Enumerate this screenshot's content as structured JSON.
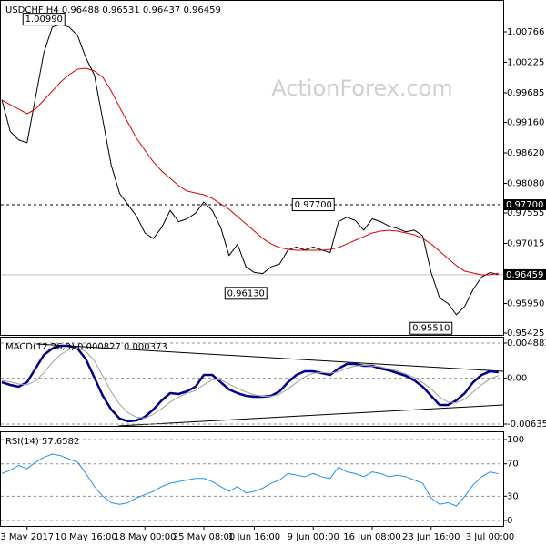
{
  "chart_data": [
    {
      "type": "line",
      "title": "USDCHF,H4 0.96488 0.96531 0.96437 0.96459",
      "watermark": "ActionForex.com",
      "ylim": [
        0.95393,
        1.01331
      ],
      "yticks": [
        1.00766,
        1.00225,
        0.99685,
        {
          "value": 0.9916,
          "label": "0.99160"
        },
        {
          "value": 0.9862,
          "label": "0.98620"
        },
        {
          "value": 0.9808,
          "label": "0.98080"
        },
        0.97555,
        0.97015,
        {
          "value": 0.9595,
          "label": "0.95950"
        },
        0.95425
      ],
      "series": [
        {
          "color": "#000000",
          "values": [
            0.9956,
            0.99,
            0.9885,
            0.988,
            0.996,
            1.004,
            1.0085,
            1.009,
            1.0085,
            1.007,
            1.003,
            1.0,
            0.992,
            0.984,
            0.979,
            0.977,
            0.975,
            0.972,
            0.971,
            0.973,
            0.976,
            0.974,
            0.9745,
            0.9755,
            0.9775,
            0.976,
            0.973,
            0.968,
            0.97,
            0.966,
            0.965,
            0.9648,
            0.966,
            0.9665,
            0.969,
            0.9695,
            0.969,
            0.9695,
            0.969,
            0.9685,
            0.974,
            0.9748,
            0.9742,
            0.9725,
            0.9745,
            0.974,
            0.9732,
            0.9728,
            0.9722,
            0.9725,
            0.9715,
            0.965,
            0.9605,
            0.9595,
            0.9575,
            0.959,
            0.962,
            0.9642,
            0.965,
            0.9646
          ]
        },
        {
          "color": "#e00000",
          "values": [
            0.99556,
            0.99475,
            0.99395,
            0.99314,
            0.99395,
            0.99556,
            0.99717,
            0.99879,
            1.00008,
            1.00105,
            1.00121,
            1.00072,
            0.99959,
            0.99717,
            0.99427,
            0.99153,
            0.98878,
            0.98668,
            0.98459,
            0.98297,
            0.98168,
            0.98039,
            0.97942,
            0.9791,
            0.97878,
            0.97813,
            0.97716,
            0.9762,
            0.9749,
            0.97361,
            0.97232,
            0.97103,
            0.97006,
            0.96942,
            0.9691,
            0.96893,
            0.96893,
            0.96893,
            0.96893,
            0.9691,
            0.96942,
            0.97006,
            0.97071,
            0.97135,
            0.972,
            0.97232,
            0.97248,
            0.97232,
            0.972,
            0.97168,
            0.97103,
            0.97006,
            0.96877,
            0.96748,
            0.96619,
            0.96522,
            0.9649,
            0.96458,
            0.96458,
            0.9649
          ]
        }
      ],
      "annotations": [
        {
          "value": 1.0099,
          "label": "1.00990",
          "at": 5
        },
        {
          "value": 0.977,
          "label": "0.97700",
          "at": 37,
          "line": "dashed"
        },
        {
          "value": 0.9613,
          "label": "0.96130",
          "at": 29
        },
        {
          "value": 0.9551,
          "label": "0.95510",
          "at": 51
        }
      ],
      "last_price": 0.96459
    },
    {
      "type": "line",
      "title": "MACD(12,26,9) 0.000827 0.000373",
      "ylim": [
        -0.006607,
        0.005767
      ],
      "yticks": [
        0.004883,
        {
          "value": 0,
          "label": "0.00"
        },
        -0.006354
      ],
      "grid": true,
      "series": [
        {
          "color": "#00008b",
          "width": 2.5,
          "values": [
            -0.000546,
            -0.000925,
            -0.001177,
            -0.000546,
            0.001348,
            0.003242,
            0.004126,
            0.004504,
            0.004504,
            0.004126,
            0.00261,
            8.5e-05,
            -0.00244,
            -0.004334,
            -0.005597,
            -0.005975,
            -0.005849,
            -0.005344,
            -0.004334,
            -0.003071,
            -0.002061,
            -0.002188,
            -0.001809,
            -0.001177,
            0.000464,
            0.000464,
            -0.000546,
            -0.001556,
            -0.002061,
            -0.00244,
            -0.002566,
            -0.002566,
            -0.00244,
            -0.001809,
            -0.000546,
            0.000464,
            0.000969,
            0.000969,
            0.000716,
            0.000464,
            0.001348,
            0.001979,
            0.001979,
            0.001727,
            0.001727,
            0.001348,
            0.001095,
            0.000716,
            0.000338,
            -0.000294,
            -0.001177,
            -0.00244,
            -0.003703,
            -0.003703,
            -0.003071,
            -0.002061,
            -0.000546,
            0.000464,
            0.000969,
            0.000827
          ]
        },
        {
          "color": "#a0a0a0",
          "width": 1,
          "values": [
            -0.0003,
            -0.0005,
            -0.0008,
            -0.0009,
            -0.0004,
            0.0008,
            0.0022,
            0.0033,
            0.004,
            0.0042,
            0.0037,
            0.0024,
            0.0003,
            -0.0019,
            -0.0036,
            -0.0048,
            -0.0054,
            -0.0055,
            -0.005,
            -0.0042,
            -0.0033,
            -0.0026,
            -0.0021,
            -0.0017,
            -0.0009,
            -0.0002,
            -0.0002,
            -0.0008,
            -0.0014,
            -0.0019,
            -0.0023,
            -0.0025,
            -0.0025,
            -0.0022,
            -0.0015,
            -0.0006,
            0.0002,
            0.0007,
            0.0008,
            0.0007,
            0.0009,
            0.0014,
            0.0017,
            0.0018,
            0.0017,
            0.0016,
            0.0013,
            0.001,
            0.0006,
            0.0001,
            -0.0006,
            -0.0015,
            -0.0026,
            -0.0033,
            -0.0034,
            -0.0029,
            -0.0019,
            -0.0009,
            -0.0001,
            0.000373
          ]
        }
      ]
    },
    {
      "type": "line",
      "title": "RSI(14) 57.6582",
      "ylim": [
        -6.7,
        110.1
      ],
      "yticks": [
        100,
        70,
        30,
        0
      ],
      "grid": true,
      "categories": [
        null,
        null,
        null,
        "3 May 2017",
        null,
        null,
        null,
        null,
        null,
        null,
        "10 May 16:00",
        null,
        null,
        null,
        null,
        null,
        null,
        "18 May 00:00",
        null,
        null,
        null,
        null,
        null,
        null,
        "25 May 08:00",
        null,
        null,
        null,
        null,
        null,
        "1 Jun 16:00",
        null,
        null,
        null,
        null,
        null,
        null,
        "9 Jun 00:00",
        null,
        null,
        null,
        null,
        null,
        null,
        "16 Jun 08:00",
        null,
        null,
        null,
        null,
        null,
        null,
        "23 Jun 16:00",
        null,
        null,
        null,
        null,
        null,
        null,
        "3 Jul 00:00",
        null
      ],
      "series": [
        {
          "color": "#1e90ff",
          "width": 1,
          "values": [
            58,
            62,
            68,
            64,
            72,
            78,
            82,
            80,
            76,
            72,
            58,
            42,
            30,
            22,
            20,
            22,
            28,
            32,
            36,
            42,
            46,
            48,
            50,
            52,
            52,
            48,
            42,
            36,
            42,
            34,
            36,
            40,
            46,
            50,
            58,
            56,
            54,
            58,
            54,
            52,
            66,
            60,
            58,
            54,
            60,
            58,
            54,
            56,
            54,
            50,
            46,
            28,
            20,
            22,
            18,
            30,
            44,
            54,
            60,
            57.6582
          ]
        }
      ]
    }
  ]
}
